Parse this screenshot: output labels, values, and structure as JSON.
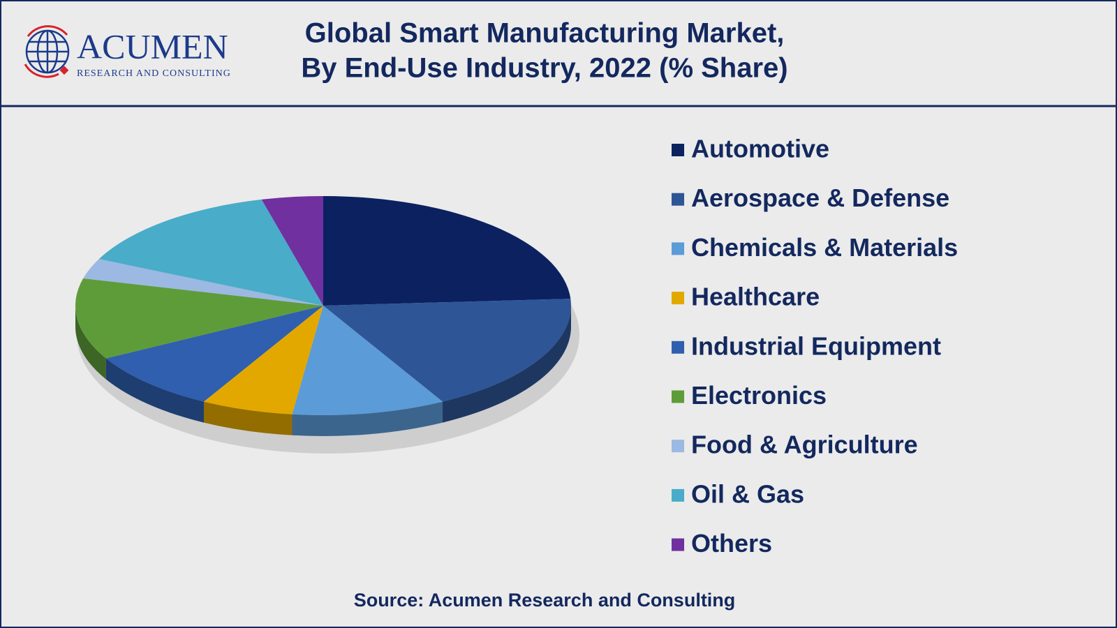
{
  "chart_data": {
    "type": "pie",
    "logo": {
      "name": "ACUMEN",
      "tagline": "RESEARCH AND CONSULTING"
    },
    "title": "Global Smart Manufacturing Market,",
    "subtitle": "By End-Use Industry, 2022 (% Share)",
    "source": "Source: Acumen Research and Consulting",
    "categories": [
      "Automotive",
      "Aerospace & Defense",
      "Chemicals & Materials",
      "Healthcare",
      "Industrial Equipment",
      "Electronics",
      "Food & Agriculture",
      "Oil & Gas",
      "Others"
    ],
    "values": [
      24,
      18,
      10,
      6,
      9,
      12,
      3,
      14,
      4
    ],
    "colors": [
      "#0b2160",
      "#2e5596",
      "#5b9bd8",
      "#e2a800",
      "#2f5fae",
      "#5e9c3a",
      "#9bb9e2",
      "#49acc8",
      "#7030a0"
    ],
    "legend": "right"
  }
}
